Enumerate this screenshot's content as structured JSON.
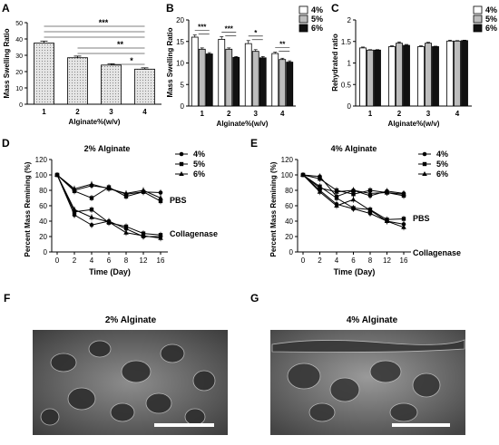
{
  "panels": {
    "A": "A",
    "B": "B",
    "C": "C",
    "D": "D",
    "E": "E",
    "F": "F",
    "G": "G"
  },
  "legend_fractions": [
    "4%",
    "5%",
    "6%"
  ],
  "colors": {
    "light": "#ffffff",
    "mid": "#bdbdbd",
    "dark": "#111111",
    "A_bar": "#dcdcdc"
  },
  "chart_data": [
    {
      "id": "A",
      "type": "bar",
      "categories": [
        "1",
        "2",
        "3",
        "4"
      ],
      "values": [
        37.5,
        28.5,
        24,
        21.5
      ],
      "errors": [
        1.2,
        1.0,
        0.8,
        0.8
      ],
      "xlabel": "Alginate%(w/v)",
      "ylabel": "Mass Swelling Ratio",
      "ylim": [
        0,
        50
      ],
      "yticks": [
        "0",
        "10",
        "20",
        "30",
        "40",
        "50"
      ],
      "significance": [
        "***",
        "**",
        "*"
      ]
    },
    {
      "id": "B",
      "type": "bar",
      "categories": [
        "1",
        "2",
        "3",
        "4"
      ],
      "series": [
        {
          "name": "4%",
          "values": [
            16,
            15.5,
            14.5,
            12.2
          ],
          "errors": [
            0.5,
            0.6,
            0.7,
            0.3
          ]
        },
        {
          "name": "5%",
          "values": [
            13.2,
            13.2,
            12.7,
            10.8
          ],
          "errors": [
            0.3,
            0.3,
            0.4,
            0.3
          ]
        },
        {
          "name": "6%",
          "values": [
            12.1,
            11.3,
            11.2,
            10.2
          ],
          "errors": [
            0.3,
            0.2,
            0.3,
            0.3
          ]
        }
      ],
      "xlabel": "Alginate%(w/v)",
      "ylabel": "Mass Swelling Ratio",
      "ylim": [
        0,
        20
      ],
      "yticks": [
        "0",
        "5",
        "10",
        "15",
        "20"
      ],
      "significance": [
        "***",
        "***",
        "*",
        "**"
      ]
    },
    {
      "id": "C",
      "type": "bar",
      "categories": [
        "1",
        "2",
        "3",
        "4"
      ],
      "series": [
        {
          "name": "4%",
          "values": [
            1.35,
            1.38,
            1.38,
            1.51
          ],
          "errors": [
            0.02,
            0.02,
            0.02,
            0.02
          ]
        },
        {
          "name": "5%",
          "values": [
            1.3,
            1.46,
            1.46,
            1.51
          ],
          "errors": [
            0.01,
            0.03,
            0.02,
            0.01
          ]
        },
        {
          "name": "6%",
          "values": [
            1.3,
            1.41,
            1.38,
            1.52
          ],
          "errors": [
            0.01,
            0.02,
            0.01,
            0.01
          ]
        }
      ],
      "xlabel": "Alginate%(w/v)",
      "ylabel": "Rehydrated ratio",
      "ylim": [
        0,
        2
      ],
      "yticks": [
        "0",
        "0.5",
        "1",
        "1.5",
        "2"
      ]
    },
    {
      "id": "D",
      "type": "line",
      "title": "2% Alginate",
      "x": [
        0,
        2,
        4,
        6,
        8,
        12,
        16
      ],
      "series": [
        {
          "name": "4%",
          "marker": "circle",
          "pbs": [
            100,
            80,
            86,
            83,
            75,
            78,
            77
          ],
          "coll": [
            100,
            48,
            35,
            40,
            30,
            20,
            20
          ]
        },
        {
          "name": "5%",
          "marker": "square",
          "pbs": [
            100,
            79,
            70,
            84,
            72,
            78,
            66
          ],
          "coll": [
            100,
            52,
            55,
            38,
            33,
            24,
            22
          ]
        },
        {
          "name": "6%",
          "marker": "triangle",
          "pbs": [
            100,
            82,
            88,
            82,
            76,
            80,
            70
          ],
          "coll": [
            100,
            55,
            45,
            39,
            25,
            21,
            18
          ]
        }
      ],
      "xlabel": "Time (Day)",
      "ylabel": "Percent Mass Remining (%)",
      "ylim": [
        0,
        120
      ],
      "yticks": [
        "0",
        "20",
        "40",
        "60",
        "80",
        "100",
        "120"
      ],
      "xticks": [
        "0",
        "2",
        "4",
        "6",
        "8",
        "12",
        "16"
      ],
      "labels": {
        "pbs": "PBS",
        "coll": "Collagenase"
      }
    },
    {
      "id": "E",
      "type": "line",
      "title": "4% Alginate",
      "x": [
        0,
        2,
        4,
        6,
        8,
        12,
        16
      ],
      "series": [
        {
          "name": "4%",
          "marker": "circle",
          "pbs": [
            100,
            98,
            72,
            80,
            73,
            79,
            76
          ],
          "coll": [
            100,
            80,
            62,
            56,
            50,
            40,
            36
          ]
        },
        {
          "name": "5%",
          "marker": "square",
          "pbs": [
            100,
            95,
            80,
            75,
            80,
            77,
            73
          ],
          "coll": [
            100,
            85,
            70,
            57,
            55,
            42,
            43
          ]
        },
        {
          "name": "6%",
          "marker": "triangle",
          "pbs": [
            100,
            83,
            78,
            80,
            76,
            77,
            75
          ],
          "coll": [
            100,
            78,
            60,
            68,
            54,
            40,
            32
          ]
        }
      ],
      "xlabel": "Time (Day)",
      "ylabel": "Percent Mass Remining (%)",
      "ylim": [
        0,
        120
      ],
      "yticks": [
        "0",
        "20",
        "40",
        "60",
        "80",
        "100",
        "120"
      ],
      "xticks": [
        "0",
        "2",
        "4",
        "6",
        "8",
        "12",
        "16"
      ],
      "labels": {
        "pbs": "PBS",
        "coll": "Collagenase"
      }
    }
  ],
  "images": {
    "F": {
      "title": "2% Alginate"
    },
    "G": {
      "title": "4% Alginate"
    }
  }
}
